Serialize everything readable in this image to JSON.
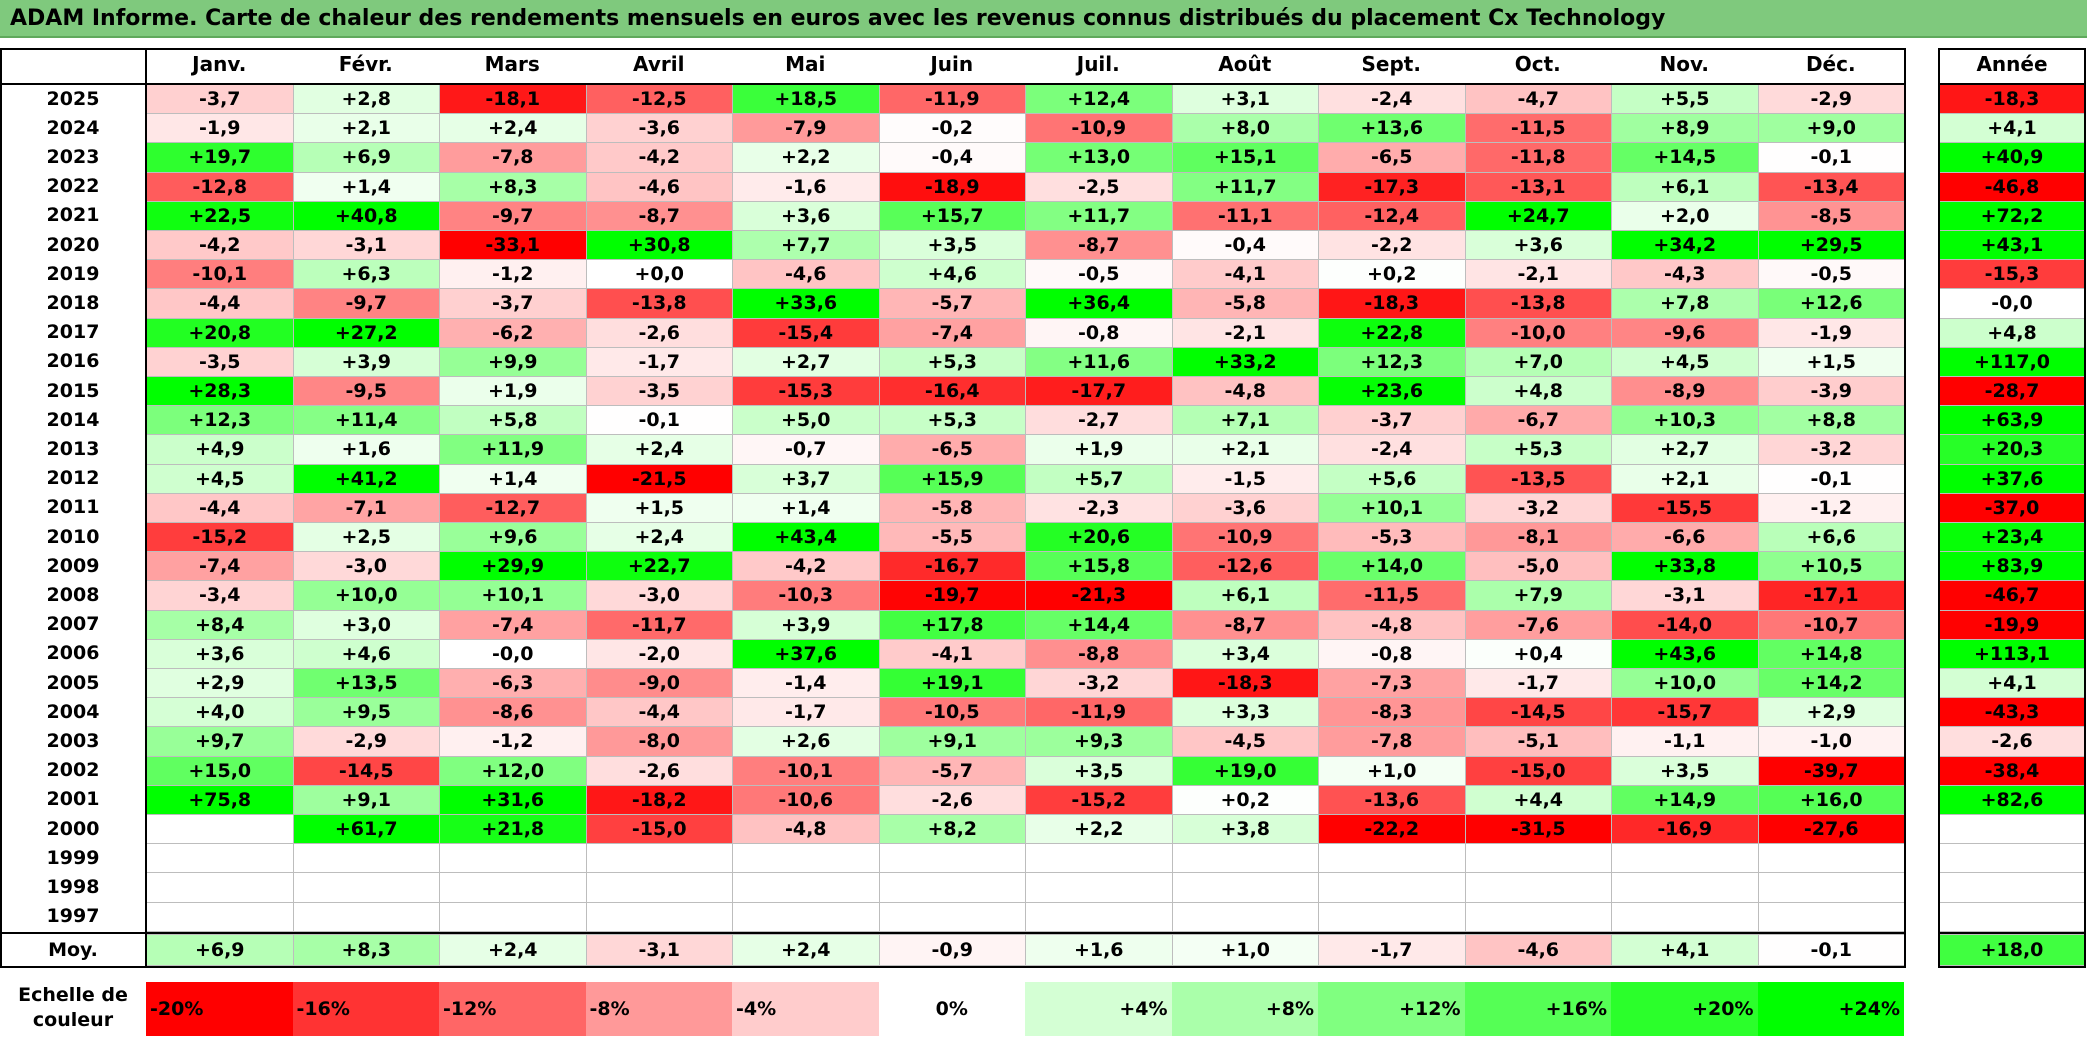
{
  "title": "ADAM Informe. Carte de chaleur des rendements mensuels en euros avec les revenus connus distribués du placement Cx Technology",
  "chart_data": {
    "type": "heatmap",
    "title": "ADAM Informe. Carte de chaleur des rendements mensuels en euros avec les revenus connus distribués du placement Cx Technology",
    "columns": [
      "Janv.",
      "Févr.",
      "Mars",
      "Avril",
      "Mai",
      "Juin",
      "Juil.",
      "Août",
      "Sept.",
      "Oct.",
      "Nov.",
      "Déc."
    ],
    "annual_header": "Année",
    "rows": [
      {
        "year": "2025",
        "months": [
          "-3,7",
          "+2,8",
          "-18,1",
          "-12,5",
          "+18,5",
          "-11,9",
          "+12,4",
          "+3,1",
          "-2,4",
          "-4,7",
          "+5,5",
          "-2,9"
        ],
        "annual": "-18,3"
      },
      {
        "year": "2024",
        "months": [
          "-1,9",
          "+2,1",
          "+2,4",
          "-3,6",
          "-7,9",
          "-0,2",
          "-10,9",
          "+8,0",
          "+13,6",
          "-11,5",
          "+8,9",
          "+9,0"
        ],
        "annual": "+4,1"
      },
      {
        "year": "2023",
        "months": [
          "+19,7",
          "+6,9",
          "-7,8",
          "-4,2",
          "+2,2",
          "-0,4",
          "+13,0",
          "+15,1",
          "-6,5",
          "-11,8",
          "+14,5",
          "-0,1"
        ],
        "annual": "+40,9"
      },
      {
        "year": "2022",
        "months": [
          "-12,8",
          "+1,4",
          "+8,3",
          "-4,6",
          "-1,6",
          "-18,9",
          "-2,5",
          "+11,7",
          "-17,3",
          "-13,1",
          "+6,1",
          "-13,4"
        ],
        "annual": "-46,8"
      },
      {
        "year": "2021",
        "months": [
          "+22,5",
          "+40,8",
          "-9,7",
          "-8,7",
          "+3,6",
          "+15,7",
          "+11,7",
          "-11,1",
          "-12,4",
          "+24,7",
          "+2,0",
          "-8,5"
        ],
        "annual": "+72,2"
      },
      {
        "year": "2020",
        "months": [
          "-4,2",
          "-3,1",
          "-33,1",
          "+30,8",
          "+7,7",
          "+3,5",
          "-8,7",
          "-0,4",
          "-2,2",
          "+3,6",
          "+34,2",
          "+29,5"
        ],
        "annual": "+43,1"
      },
      {
        "year": "2019",
        "months": [
          "-10,1",
          "+6,3",
          "-1,2",
          "+0,0",
          "-4,6",
          "+4,6",
          "-0,5",
          "-4,1",
          "+0,2",
          "-2,1",
          "-4,3",
          "-0,5"
        ],
        "annual": "-15,3"
      },
      {
        "year": "2018",
        "months": [
          "-4,4",
          "-9,7",
          "-3,7",
          "-13,8",
          "+33,6",
          "-5,7",
          "+36,4",
          "-5,8",
          "-18,3",
          "-13,8",
          "+7,8",
          "+12,6"
        ],
        "annual": "-0,0"
      },
      {
        "year": "2017",
        "months": [
          "+20,8",
          "+27,2",
          "-6,2",
          "-2,6",
          "-15,4",
          "-7,4",
          "-0,8",
          "-2,1",
          "+22,8",
          "-10,0",
          "-9,6",
          "-1,9"
        ],
        "annual": "+4,8"
      },
      {
        "year": "2016",
        "months": [
          "-3,5",
          "+3,9",
          "+9,9",
          "-1,7",
          "+2,7",
          "+5,3",
          "+11,6",
          "+33,2",
          "+12,3",
          "+7,0",
          "+4,5",
          "+1,5"
        ],
        "annual": "+117,0"
      },
      {
        "year": "2015",
        "months": [
          "+28,3",
          "-9,5",
          "+1,9",
          "-3,5",
          "-15,3",
          "-16,4",
          "-17,7",
          "-4,8",
          "+23,6",
          "+4,8",
          "-8,9",
          "-3,9"
        ],
        "annual": "-28,7"
      },
      {
        "year": "2014",
        "months": [
          "+12,3",
          "+11,4",
          "+5,8",
          "-0,1",
          "+5,0",
          "+5,3",
          "-2,7",
          "+7,1",
          "-3,7",
          "-6,7",
          "+10,3",
          "+8,8"
        ],
        "annual": "+63,9"
      },
      {
        "year": "2013",
        "months": [
          "+4,9",
          "+1,6",
          "+11,9",
          "+2,4",
          "-0,7",
          "-6,5",
          "+1,9",
          "+2,1",
          "-2,4",
          "+5,3",
          "+2,7",
          "-3,2"
        ],
        "annual": "+20,3"
      },
      {
        "year": "2012",
        "months": [
          "+4,5",
          "+41,2",
          "+1,4",
          "-21,5",
          "+3,7",
          "+15,9",
          "+5,7",
          "-1,5",
          "+5,6",
          "-13,5",
          "+2,1",
          "-0,1"
        ],
        "annual": "+37,6"
      },
      {
        "year": "2011",
        "months": [
          "-4,4",
          "-7,1",
          "-12,7",
          "+1,5",
          "+1,4",
          "-5,8",
          "-2,3",
          "-3,6",
          "+10,1",
          "-3,2",
          "-15,5",
          "-1,2"
        ],
        "annual": "-37,0"
      },
      {
        "year": "2010",
        "months": [
          "-15,2",
          "+2,5",
          "+9,6",
          "+2,4",
          "+43,4",
          "-5,5",
          "+20,6",
          "-10,9",
          "-5,3",
          "-8,1",
          "-6,6",
          "+6,6"
        ],
        "annual": "+23,4"
      },
      {
        "year": "2009",
        "months": [
          "-7,4",
          "-3,0",
          "+29,9",
          "+22,7",
          "-4,2",
          "-16,7",
          "+15,8",
          "-12,6",
          "+14,0",
          "-5,0",
          "+33,8",
          "+10,5"
        ],
        "annual": "+83,9"
      },
      {
        "year": "2008",
        "months": [
          "-3,4",
          "+10,0",
          "+10,1",
          "-3,0",
          "-10,3",
          "-19,7",
          "-21,3",
          "+6,1",
          "-11,5",
          "+7,9",
          "-3,1",
          "-17,1"
        ],
        "annual": "-46,7"
      },
      {
        "year": "2007",
        "months": [
          "+8,4",
          "+3,0",
          "-7,4",
          "-11,7",
          "+3,9",
          "+17,8",
          "+14,4",
          "-8,7",
          "-4,8",
          "-7,6",
          "-14,0",
          "-10,7"
        ],
        "annual": "-19,9"
      },
      {
        "year": "2006",
        "months": [
          "+3,6",
          "+4,6",
          "-0,0",
          "-2,0",
          "+37,6",
          "-4,1",
          "-8,8",
          "+3,4",
          "-0,8",
          "+0,4",
          "+43,6",
          "+14,8"
        ],
        "annual": "+113,1"
      },
      {
        "year": "2005",
        "months": [
          "+2,9",
          "+13,5",
          "-6,3",
          "-9,0",
          "-1,4",
          "+19,1",
          "-3,2",
          "-18,3",
          "-7,3",
          "-1,7",
          "+10,0",
          "+14,2"
        ],
        "annual": "+4,1"
      },
      {
        "year": "2004",
        "months": [
          "+4,0",
          "+9,5",
          "-8,6",
          "-4,4",
          "-1,7",
          "-10,5",
          "-11,9",
          "+3,3",
          "-8,3",
          "-14,5",
          "-15,7",
          "+2,9"
        ],
        "annual": "-43,3"
      },
      {
        "year": "2003",
        "months": [
          "+9,7",
          "-2,9",
          "-1,2",
          "-8,0",
          "+2,6",
          "+9,1",
          "+9,3",
          "-4,5",
          "-7,8",
          "-5,1",
          "-1,1",
          "-1,0"
        ],
        "annual": "-2,6"
      },
      {
        "year": "2002",
        "months": [
          "+15,0",
          "-14,5",
          "+12,0",
          "-2,6",
          "-10,1",
          "-5,7",
          "+3,5",
          "+19,0",
          "+1,0",
          "-15,0",
          "+3,5",
          "-39,7"
        ],
        "annual": "-38,4"
      },
      {
        "year": "2001",
        "months": [
          "+75,8",
          "+9,1",
          "+31,6",
          "-18,2",
          "-10,6",
          "-2,6",
          "-15,2",
          "+0,2",
          "-13,6",
          "+4,4",
          "+14,9",
          "+16,0"
        ],
        "annual": "+82,6"
      },
      {
        "year": "2000",
        "months": [
          "",
          "+61,7",
          "+21,8",
          "-15,0",
          "-4,8",
          "+8,2",
          "+2,2",
          "+3,8",
          "-22,2",
          "-31,5",
          "-16,9",
          "-27,6"
        ],
        "annual": ""
      },
      {
        "year": "1999",
        "months": [
          "",
          "",
          "",
          "",
          "",
          "",
          "",
          "",
          "",
          "",
          "",
          ""
        ],
        "annual": ""
      },
      {
        "year": "1998",
        "months": [
          "",
          "",
          "",
          "",
          "",
          "",
          "",
          "",
          "",
          "",
          "",
          ""
        ],
        "annual": ""
      },
      {
        "year": "1997",
        "months": [
          "",
          "",
          "",
          "",
          "",
          "",
          "",
          "",
          "",
          "",
          "",
          ""
        ],
        "annual": ""
      }
    ],
    "average": {
      "label": "Moy.",
      "months": [
        "+6,9",
        "+8,3",
        "+2,4",
        "-3,1",
        "+2,4",
        "-0,9",
        "+1,6",
        "+1,0",
        "-1,7",
        "-4,6",
        "+4,1",
        "-0,1"
      ],
      "annual": "+18,0"
    },
    "color_scale": {
      "label": "Echelle de couleur",
      "steps": [
        {
          "label": "-20%",
          "value": -20,
          "color": "#ff0000"
        },
        {
          "label": "-16%",
          "value": -16,
          "color": "#ff3333"
        },
        {
          "label": "-12%",
          "value": -12,
          "color": "#ff6666"
        },
        {
          "label": "-8%",
          "value": -8,
          "color": "#ff9999"
        },
        {
          "label": "-4%",
          "value": -4,
          "color": "#ffcccc"
        },
        {
          "label": "0%",
          "value": 0,
          "color": "#ffffff"
        },
        {
          "label": "+4%",
          "value": 4,
          "color": "#d4ffd4"
        },
        {
          "label": "+8%",
          "value": 8,
          "color": "#aaffaa"
        },
        {
          "label": "+12%",
          "value": 12,
          "color": "#80ff80"
        },
        {
          "label": "+16%",
          "value": 16,
          "color": "#55ff55"
        },
        {
          "label": "+20%",
          "value": 20,
          "color": "#2bff2b"
        },
        {
          "label": "+24%",
          "value": 24,
          "color": "#00ff00"
        }
      ]
    }
  }
}
